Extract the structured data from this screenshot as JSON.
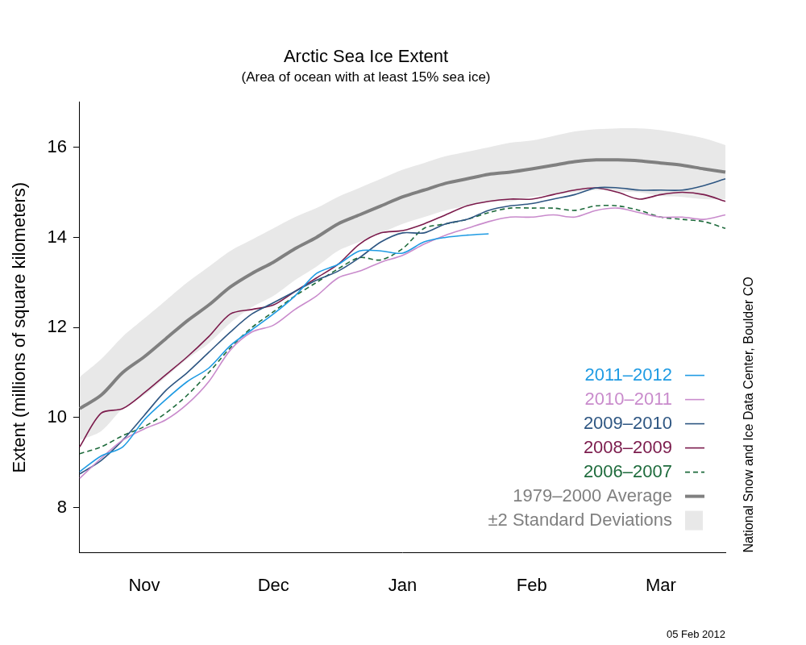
{
  "chart_data": {
    "type": "line",
    "title": "Arctic Sea Ice Extent",
    "subtitle": "(Area of ocean with at least 15% sea ice)",
    "y_label": "Extent (millions of square kilometers)",
    "annotations": [
      "National Snow and Ice Data Center, Boulder CO",
      "05 Feb 2012"
    ],
    "categories": [
      null,
      null,
      null,
      "Nov",
      null,
      null,
      null,
      null,
      null,
      "Dec",
      null,
      null,
      null,
      null,
      null,
      "Jan",
      null,
      null,
      null,
      null,
      null,
      "Feb",
      null,
      null,
      null,
      null,
      null,
      "Mar",
      null,
      null,
      null
    ],
    "ylim": [
      7,
      17
    ],
    "yticks": [
      8,
      10,
      12,
      14,
      16
    ],
    "grid": false,
    "legend": "bottom-right",
    "series": [
      {
        "name": "2011–2012",
        "color": "#1f9be3",
        "line_style": "solid",
        "values": [
          8.8,
          9.15,
          9.35,
          9.95,
          10.4,
          10.8,
          11.1,
          11.6,
          11.95,
          12.3,
          12.7,
          13.2,
          13.4,
          13.7,
          13.7,
          13.65,
          13.9,
          14.0,
          14.05,
          14.08,
          null,
          null,
          null,
          null,
          null,
          null,
          null,
          null,
          null,
          null,
          null
        ]
      },
      {
        "name": "2010–2011",
        "color": "#c98bcc",
        "line_style": "solid",
        "values": [
          8.65,
          9.1,
          9.5,
          9.75,
          9.95,
          10.3,
          10.8,
          11.5,
          11.9,
          12.05,
          12.4,
          12.7,
          13.1,
          13.25,
          13.45,
          13.6,
          13.85,
          14.05,
          14.2,
          14.35,
          14.45,
          14.45,
          14.5,
          14.45,
          14.6,
          14.65,
          14.55,
          14.45,
          14.45,
          14.4,
          14.5
        ]
      },
      {
        "name": "2009–2010",
        "color": "#2e5682",
        "line_style": "solid",
        "values": [
          8.75,
          9.05,
          9.5,
          10.05,
          10.6,
          11.0,
          11.45,
          11.9,
          12.3,
          12.55,
          12.8,
          13.05,
          13.25,
          13.55,
          13.9,
          14.1,
          14.1,
          14.3,
          14.4,
          14.6,
          14.7,
          14.75,
          14.85,
          14.95,
          15.1,
          15.1,
          15.05,
          15.05,
          15.05,
          15.15,
          15.3
        ]
      },
      {
        "name": "2008–2009",
        "color": "#7b1b4c",
        "line_style": "solid",
        "values": [
          9.35,
          10.1,
          10.2,
          10.55,
          10.95,
          11.35,
          11.8,
          12.3,
          12.4,
          12.5,
          12.8,
          13.1,
          13.4,
          13.85,
          14.1,
          14.15,
          14.3,
          14.5,
          14.7,
          14.8,
          14.85,
          14.85,
          14.95,
          15.05,
          15.1,
          15.0,
          14.85,
          14.95,
          15.0,
          14.95,
          14.8
        ]
      },
      {
        "name": "2006–2007",
        "color": "#1e6b3c",
        "line_style": "dashed",
        "values": [
          9.2,
          9.35,
          9.6,
          9.8,
          10.1,
          10.5,
          11.0,
          11.55,
          12.0,
          12.35,
          12.7,
          13.0,
          13.3,
          13.55,
          13.5,
          13.75,
          14.2,
          14.3,
          14.4,
          14.55,
          14.65,
          14.65,
          14.65,
          14.6,
          14.7,
          14.7,
          14.6,
          14.45,
          14.4,
          14.35,
          14.2
        ]
      },
      {
        "name": "1979–2000 Average",
        "color": "#808080",
        "line_style": "solid",
        "values": [
          10.2,
          10.5,
          11.0,
          11.35,
          11.75,
          12.15,
          12.5,
          12.9,
          13.2,
          13.45,
          13.75,
          14.0,
          14.3,
          14.5,
          14.7,
          14.9,
          15.05,
          15.2,
          15.3,
          15.4,
          15.45,
          15.52,
          15.6,
          15.68,
          15.72,
          15.72,
          15.7,
          15.65,
          15.6,
          15.52,
          15.45
        ]
      },
      {
        "name": "±2 Standard Deviations",
        "type": "band",
        "color": "#e8e8e8",
        "lower": [
          9.5,
          9.7,
          10.2,
          10.5,
          10.9,
          11.3,
          11.65,
          12.1,
          12.45,
          12.7,
          13.05,
          13.35,
          13.7,
          13.9,
          14.1,
          14.3,
          14.45,
          14.6,
          14.7,
          14.8,
          14.8,
          14.9,
          14.95,
          15.0,
          15.05,
          15.02,
          15.0,
          14.92,
          14.9,
          14.85,
          14.85
        ],
        "upper": [
          10.9,
          11.3,
          11.8,
          12.2,
          12.6,
          13.0,
          13.35,
          13.7,
          13.95,
          14.2,
          14.45,
          14.65,
          14.9,
          15.1,
          15.3,
          15.5,
          15.65,
          15.8,
          15.9,
          16.0,
          16.1,
          16.15,
          16.25,
          16.35,
          16.4,
          16.42,
          16.42,
          16.38,
          16.3,
          16.2,
          16.05
        ]
      }
    ]
  }
}
